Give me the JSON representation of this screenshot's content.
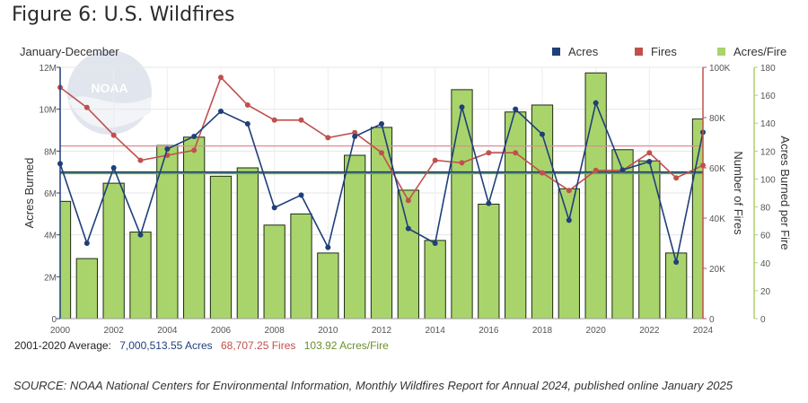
{
  "title": "Figure 6: U.S. Wildfires",
  "range_label": "January-December",
  "legend": [
    {
      "label": "Acres",
      "color": "#1f3f7a"
    },
    {
      "label": "Fires",
      "color": "#c0504d"
    },
    {
      "label": "Acres/Fire",
      "color": "#a9d46b"
    }
  ],
  "averages": {
    "label": "2001-2020 Average:",
    "acres": "7,000,513.55 Acres",
    "fires": "68,707.25 Fires",
    "acres_per_fire": "103.92 Acres/Fire"
  },
  "source": "SOURCE: NOAA National Centers for Environmental Information, Monthly Wildfires Report for Annual 2024, published online January 2025",
  "chart_data": {
    "type": "bar+line",
    "x_label": "",
    "categories": [
      2000,
      2001,
      2002,
      2003,
      2004,
      2005,
      2006,
      2007,
      2008,
      2009,
      2010,
      2011,
      2012,
      2013,
      2014,
      2015,
      2016,
      2017,
      2018,
      2019,
      2020,
      2021,
      2022,
      2023,
      2024
    ],
    "x_tick_labels": [
      "2000",
      "2002",
      "2004",
      "2006",
      "2008",
      "2010",
      "2012",
      "2014",
      "2016",
      "2018",
      "2020",
      "2022",
      "2024"
    ],
    "axes": {
      "left": {
        "label": "Acres Burned",
        "min": 0,
        "max": 12000000,
        "ticks": [
          "0",
          "2M",
          "4M",
          "6M",
          "8M",
          "10M",
          "12M"
        ],
        "color": "#1f3f7a"
      },
      "right1": {
        "label": "Number of Fires",
        "min": 0,
        "max": 100000,
        "ticks": [
          "0",
          "20K",
          "40K",
          "60K",
          "80K",
          "100K"
        ],
        "color": "#c0504d"
      },
      "right2": {
        "label": "Acres Burned per Fire",
        "min": 0,
        "max": 180,
        "ticks": [
          "0",
          "20",
          "40",
          "60",
          "80",
          "100",
          "120",
          "140",
          "160",
          "180"
        ],
        "color": "#a9d46b"
      }
    },
    "series": [
      {
        "name": "Acres/Fire",
        "type": "bar",
        "axis": "right2",
        "values": [
          84,
          43,
          97,
          62,
          124,
          130,
          102,
          108,
          67,
          75,
          47,
          117,
          137,
          92,
          56,
          164,
          82,
          148,
          153,
          93,
          176,
          121,
          113,
          47,
          143
        ]
      },
      {
        "name": "Acres",
        "type": "line",
        "axis": "left",
        "values": [
          7400000,
          3600000,
          7200000,
          4000000,
          8100000,
          8700000,
          9900000,
          9300000,
          5300000,
          5900000,
          3400000,
          8700000,
          9300000,
          4300000,
          3600000,
          10100000,
          5500000,
          10000000,
          8800000,
          4700000,
          10300000,
          7100000,
          7500000,
          2700000,
          8900000
        ]
      },
      {
        "name": "Fires",
        "type": "line",
        "axis": "right1",
        "values": [
          92000,
          84000,
          73000,
          63000,
          65000,
          67000,
          96000,
          85000,
          79000,
          79000,
          72000,
          74000,
          66000,
          47000,
          63000,
          62000,
          66000,
          66000,
          58000,
          51000,
          59000,
          59000,
          66000,
          56000,
          61000
        ]
      }
    ],
    "reference_lines": [
      {
        "name": "Acres average",
        "axis": "left",
        "value": 7000513.55
      },
      {
        "name": "Fires average",
        "axis": "right1",
        "value": 68707.25
      },
      {
        "name": "Acres/Fire average",
        "axis": "right2",
        "value": 103.92
      }
    ]
  }
}
